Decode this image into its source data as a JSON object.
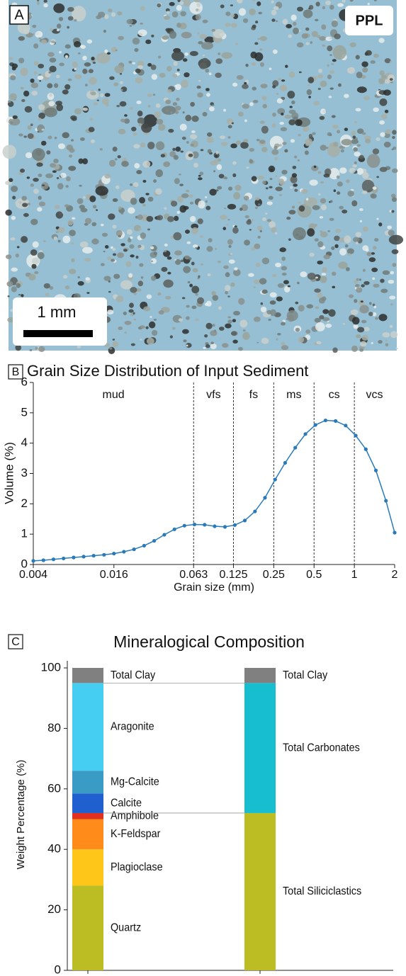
{
  "image": {
    "panel_label": "A",
    "mode": "PPL",
    "scale_bar": "1 mm"
  },
  "chart_data": [
    {
      "type": "line",
      "panel_label": "B",
      "title": "Grain Size Distribution of Input Sediment",
      "xlabel": "Grain size (mm)",
      "ylabel": "Volume (%)",
      "xscale": "log",
      "x": [
        0.004,
        0.00476,
        0.00566,
        0.00673,
        0.008,
        0.00951,
        0.0113,
        0.0135,
        0.016,
        0.019,
        0.0226,
        0.0269,
        0.032,
        0.0381,
        0.0453,
        0.0538,
        0.064,
        0.0761,
        0.0905,
        0.108,
        0.128,
        0.152,
        0.181,
        0.215,
        0.256,
        0.304,
        0.362,
        0.431,
        0.512,
        0.609,
        0.724,
        0.861,
        1.024,
        1.218,
        1.448,
        1.722,
        2
      ],
      "series": [
        {
          "color": "#2a7ab9",
          "values": [
            0.12,
            0.14,
            0.17,
            0.2,
            0.23,
            0.26,
            0.29,
            0.32,
            0.36,
            0.42,
            0.5,
            0.62,
            0.78,
            0.98,
            1.16,
            1.28,
            1.32,
            1.31,
            1.26,
            1.24,
            1.3,
            1.45,
            1.75,
            2.2,
            2.8,
            3.35,
            3.85,
            4.3,
            4.6,
            4.75,
            4.73,
            4.58,
            4.25,
            3.8,
            3.1,
            2.1,
            1.05
          ]
        }
      ],
      "xlim": [
        0.004,
        2
      ],
      "ylim": [
        0,
        6
      ],
      "xticks": [
        0.004,
        0.016,
        0.063,
        0.125,
        0.25,
        0.5,
        1,
        2
      ],
      "yticks": [
        0,
        1,
        2,
        3,
        4,
        5,
        6
      ],
      "class_boundaries": [
        0.063,
        0.125,
        0.25,
        0.5,
        1
      ],
      "size_classes": [
        "mud",
        "vfs",
        "fs",
        "ms",
        "cs",
        "vcs"
      ]
    },
    {
      "type": "stacked-bar",
      "panel_label": "C",
      "title": "Mineralogical Composition",
      "ylabel": "Weight Percentage (%)",
      "ylim": [
        0,
        100
      ],
      "yticks": [
        0,
        20,
        40,
        60,
        80,
        100
      ],
      "bars": [
        {
          "segments": [
            {
              "name": "Quartz",
              "color": "#bcbd22",
              "value": 28
            },
            {
              "name": "Plagioclase",
              "color": "#ffc61a",
              "value": 12
            },
            {
              "name": "K-Feldspar",
              "color": "#ff8c1a",
              "value": 10
            },
            {
              "name": "Amphibole",
              "color": "#e03020",
              "value": 2
            },
            {
              "name": "Calcite",
              "color": "#1f5fd0",
              "value": 6.5
            },
            {
              "name": "Mg-Calcite",
              "color": "#3a9bc4",
              "value": 7.5
            },
            {
              "name": "Aragonite",
              "color": "#45cdf2",
              "value": 29
            },
            {
              "name": "Total Clay",
              "color": "#808080",
              "value": 5
            }
          ]
        },
        {
          "segments": [
            {
              "name": "Total Siliciclastics",
              "color": "#bcbd22",
              "value": 52
            },
            {
              "name": "Total Carbonates",
              "color": "#17becf",
              "value": 43
            },
            {
              "name": "Total Clay",
              "color": "#808080",
              "value": 5
            }
          ]
        }
      ]
    }
  ]
}
